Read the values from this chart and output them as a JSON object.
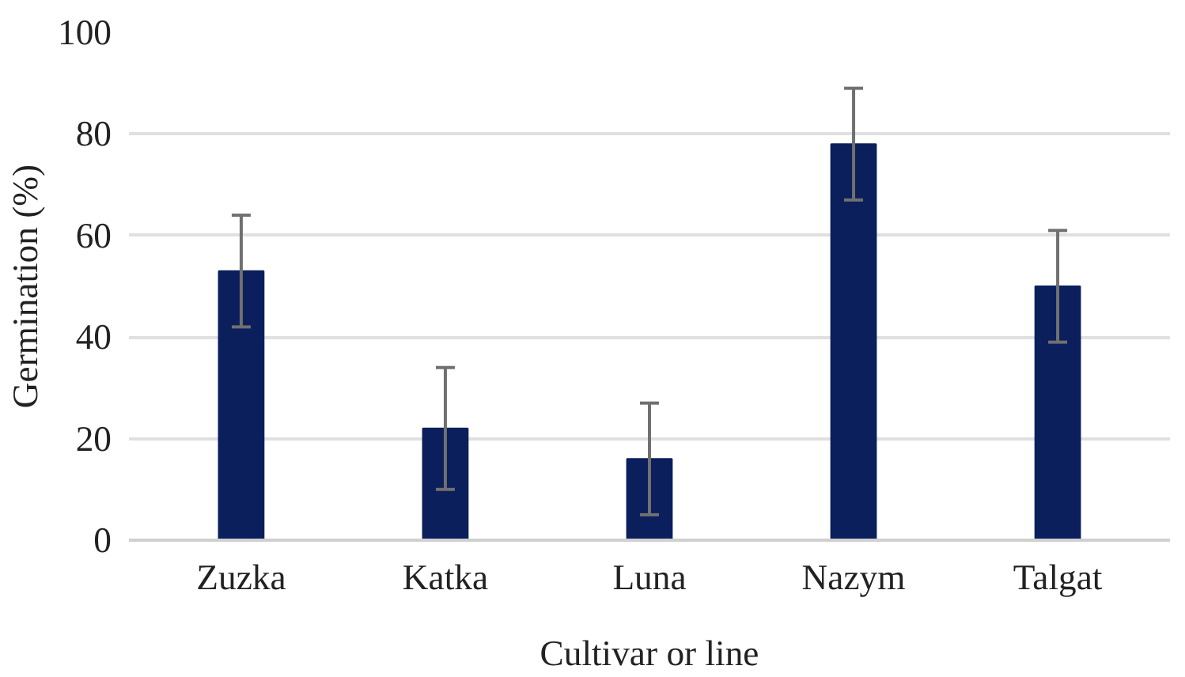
{
  "chart_data": {
    "type": "bar",
    "xlabel": "Cultivar or line",
    "ylabel": "Germination (%)",
    "categories": [
      "Zuzka",
      "Katka",
      "Luna",
      "Nazym",
      "Talgat"
    ],
    "values": [
      53,
      22,
      16,
      78,
      50
    ],
    "errors": [
      11,
      12,
      11,
      11,
      11
    ],
    "color": "#0b1f5c",
    "ylim": [
      0,
      100
    ],
    "yticks": [
      0,
      20,
      40,
      60,
      80,
      100
    ],
    "grid": "y"
  }
}
